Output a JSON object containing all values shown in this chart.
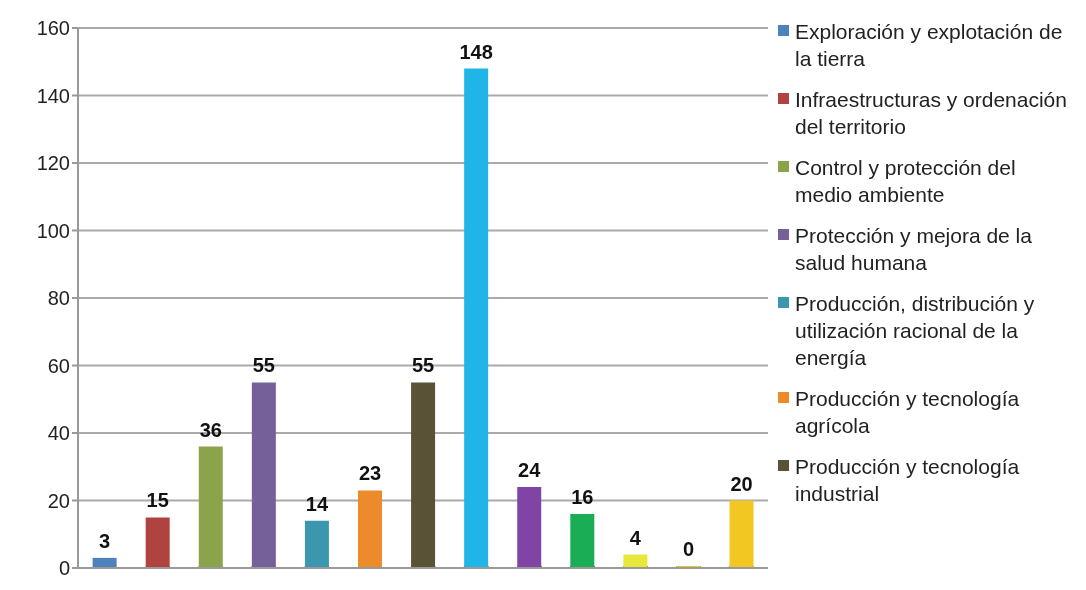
{
  "chart_data": {
    "type": "bar",
    "stacked": true,
    "categories": [
      null,
      null,
      null,
      null,
      null,
      null,
      null,
      null,
      null,
      null,
      null,
      null,
      null
    ],
    "series": [
      {
        "name": "Exploración y explotación de la tierra",
        "color": "#4f81bd",
        "values": [
          3,
          null,
          null,
          null,
          null,
          null,
          null,
          null,
          null,
          null,
          null,
          null,
          null
        ]
      },
      {
        "name": "Infraestructuras y ordenación del territorio",
        "color": "#b0433f",
        "values": [
          null,
          15,
          null,
          null,
          null,
          null,
          null,
          null,
          null,
          null,
          null,
          null,
          null
        ]
      },
      {
        "name": "Control y protección del medio ambiente",
        "color": "#8ba34a",
        "values": [
          null,
          null,
          36,
          null,
          null,
          null,
          null,
          null,
          null,
          null,
          null,
          null,
          null
        ]
      },
      {
        "name": "Protección y mejora de la salud humana",
        "color": "#76609a",
        "values": [
          null,
          null,
          null,
          55,
          null,
          null,
          null,
          null,
          null,
          null,
          null,
          null,
          null
        ]
      },
      {
        "name": "Producción, distribución y utilización racional de la energía",
        "color": "#3a97ad",
        "values": [
          null,
          null,
          null,
          null,
          14,
          null,
          null,
          null,
          null,
          null,
          null,
          null,
          null
        ]
      },
      {
        "name": "Producción y tecnología agrícola",
        "color": "#ec8a2c",
        "values": [
          null,
          null,
          null,
          null,
          null,
          23,
          null,
          null,
          null,
          null,
          null,
          null,
          null
        ]
      },
      {
        "name": "Producción y tecnología industrial",
        "color": "#5a5236",
        "values": [
          null,
          null,
          null,
          null,
          null,
          null,
          55,
          null,
          null,
          null,
          null,
          null,
          null
        ]
      },
      {
        "color": "#1fb5e6",
        "values": [
          null,
          null,
          null,
          null,
          null,
          null,
          null,
          148,
          null,
          null,
          null,
          null,
          null
        ]
      },
      {
        "color": "#7f44a4",
        "values": [
          null,
          null,
          null,
          null,
          null,
          null,
          null,
          null,
          24,
          null,
          null,
          null,
          null
        ]
      },
      {
        "color": "#19ae55",
        "values": [
          null,
          null,
          null,
          null,
          null,
          null,
          null,
          null,
          null,
          16,
          null,
          null,
          null
        ]
      },
      {
        "color": "#e8e83a",
        "values": [
          null,
          null,
          null,
          null,
          null,
          null,
          null,
          null,
          null,
          null,
          4,
          null,
          null
        ]
      },
      {
        "color": "#e0301e",
        "values": [
          null,
          null,
          null,
          null,
          null,
          null,
          null,
          null,
          null,
          null,
          null,
          0,
          null
        ]
      },
      {
        "color": "#f2c722",
        "values": [
          null,
          null,
          null,
          null,
          null,
          null,
          null,
          null,
          null,
          null,
          null,
          null,
          20
        ]
      }
    ],
    "ylim": [
      0,
      160
    ],
    "yticks": [
      0,
      20,
      40,
      60,
      80,
      100,
      120,
      140,
      160
    ],
    "grid": "y",
    "legend": "right",
    "data_labels": true
  }
}
